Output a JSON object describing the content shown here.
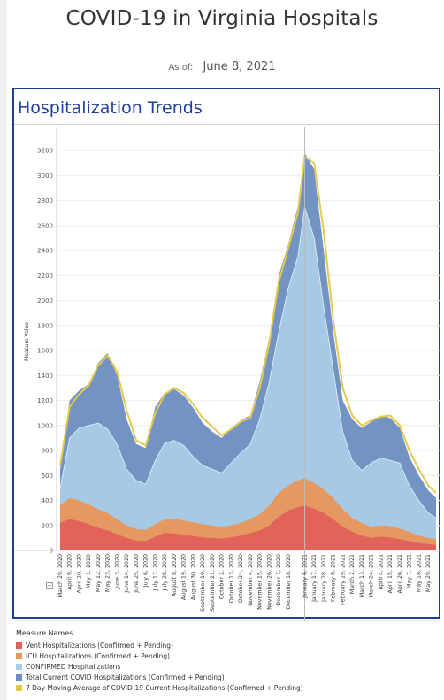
{
  "header": {
    "title": "COVID-19 in Virginia Hospitals",
    "asof_label": "As of:",
    "asof_date": "June 8, 2021"
  },
  "panel": {
    "title": "Hospitalization Trends"
  },
  "chart_data": {
    "type": "area",
    "ylabel": "Measure Value",
    "ylim": [
      0,
      3300
    ],
    "yticks": [
      0,
      200,
      400,
      600,
      800,
      1000,
      1200,
      1400,
      1600,
      1800,
      2000,
      2200,
      2400,
      2600,
      2800,
      3000,
      3200
    ],
    "x_tick_labels": [
      "March 29, 2020",
      "April 9, 2020",
      "April 20, 2020",
      "May 1, 2020",
      "May 12, 2020",
      "May 23, 2020",
      "June 3, 2020",
      "June 14, 2020",
      "June 25, 2020",
      "July 6, 2020",
      "July 17, 2020",
      "July 28, 2020",
      "August 8, 2020",
      "August 19, 2020",
      "August 30, 2020",
      "September 10, 2020",
      "September 21, 2020",
      "October 2, 2020",
      "October 13, 2020",
      "October 24, 2020",
      "November 4, 2020",
      "November 15, 2020",
      "November 26, 2020",
      "December 7, 2020",
      "December 18, 2020",
      "January 6, 2021",
      "January 17, 2021",
      "January 28, 2021",
      "February 8, 2021",
      "February 19, 2021",
      "March 2, 2021",
      "March 13, 2021",
      "March 24, 2021",
      "April 4, 2021",
      "April 15, 2021",
      "April 26, 2021",
      "May 7, 2021",
      "May 18, 2021",
      "May 29, 2021"
    ],
    "x_dates": [
      "2020-03-29",
      "2020-04-09",
      "2020-04-20",
      "2020-05-01",
      "2020-05-12",
      "2020-05-23",
      "2020-06-03",
      "2020-06-14",
      "2020-06-25",
      "2020-07-06",
      "2020-07-17",
      "2020-07-28",
      "2020-08-08",
      "2020-08-19",
      "2020-08-30",
      "2020-09-10",
      "2020-09-21",
      "2020-10-02",
      "2020-10-13",
      "2020-10-24",
      "2020-11-04",
      "2020-11-15",
      "2020-11-26",
      "2020-12-07",
      "2020-12-18",
      "2020-12-29",
      "2021-01-06",
      "2021-01-17",
      "2021-01-28",
      "2021-02-08",
      "2021-02-19",
      "2021-03-02",
      "2021-03-13",
      "2021-03-24",
      "2021-04-04",
      "2021-04-15",
      "2021-04-26",
      "2021-05-07",
      "2021-05-18",
      "2021-05-29",
      "2021-06-07"
    ],
    "series": [
      {
        "name": "Vent Hospitalizations (Confirmed + Pending)",
        "color": "#e0605a",
        "values": [
          220,
          250,
          235,
          210,
          180,
          160,
          130,
          100,
          80,
          75,
          110,
          140,
          135,
          125,
          115,
          105,
          100,
          95,
          105,
          120,
          140,
          160,
          200,
          270,
          320,
          345,
          360,
          335,
          300,
          250,
          190,
          150,
          120,
          100,
          110,
          105,
          90,
          75,
          60,
          50,
          45
        ]
      },
      {
        "name": "ICU Hospitalizations (Confirmed + Pending)",
        "color": "#e8975a",
        "values": [
          360,
          420,
          400,
          370,
          330,
          300,
          250,
          200,
          170,
          165,
          210,
          250,
          255,
          240,
          225,
          210,
          200,
          190,
          200,
          220,
          250,
          290,
          360,
          460,
          520,
          560,
          580,
          540,
          490,
          420,
          330,
          260,
          220,
          190,
          200,
          195,
          175,
          150,
          120,
          100,
          90
        ]
      },
      {
        "name": "CONFIRMED Hospitalizations",
        "color": "#a9cbe8",
        "values": [
          500,
          900,
          980,
          1000,
          1020,
          970,
          850,
          650,
          560,
          530,
          720,
          860,
          880,
          840,
          750,
          680,
          650,
          620,
          700,
          780,
          850,
          1050,
          1350,
          1750,
          2100,
          2350,
          2750,
          2500,
          1950,
          1450,
          950,
          720,
          640,
          700,
          740,
          720,
          700,
          520,
          400,
          300,
          260
        ]
      },
      {
        "name": "Total Current COVID Hospitalizations (Confirmed + Pending)",
        "color": "#6c8ebf",
        "values": [
          650,
          1200,
          1280,
          1330,
          1500,
          1580,
          1400,
          1050,
          850,
          820,
          1150,
          1260,
          1290,
          1240,
          1140,
          1020,
          950,
          900,
          980,
          1040,
          1080,
          1350,
          1700,
          2200,
          2450,
          2750,
          3180,
          3050,
          2400,
          1750,
          1200,
          1050,
          980,
          1030,
          1080,
          1060,
          980,
          750,
          600,
          480,
          420
        ]
      },
      {
        "name": "7 Day Moving Average of COVID-19 Current Hospitalizations (Confirmed + Pending)",
        "color": "#e6c84a",
        "values": [
          680,
          1150,
          1250,
          1320,
          1480,
          1560,
          1430,
          1120,
          880,
          840,
          1100,
          1250,
          1300,
          1260,
          1170,
          1060,
          990,
          920,
          970,
          1030,
          1060,
          1300,
          1660,
          2150,
          2420,
          2700,
          3150,
          3100,
          2550,
          1850,
          1300,
          1080,
          1000,
          1040,
          1070,
          1080,
          1000,
          800,
          650,
          520,
          460
        ]
      }
    ],
    "current_date_label": "January 6, 2021",
    "legend_position": "bottom-left",
    "legend_title": "Measure Names",
    "grid": true
  }
}
